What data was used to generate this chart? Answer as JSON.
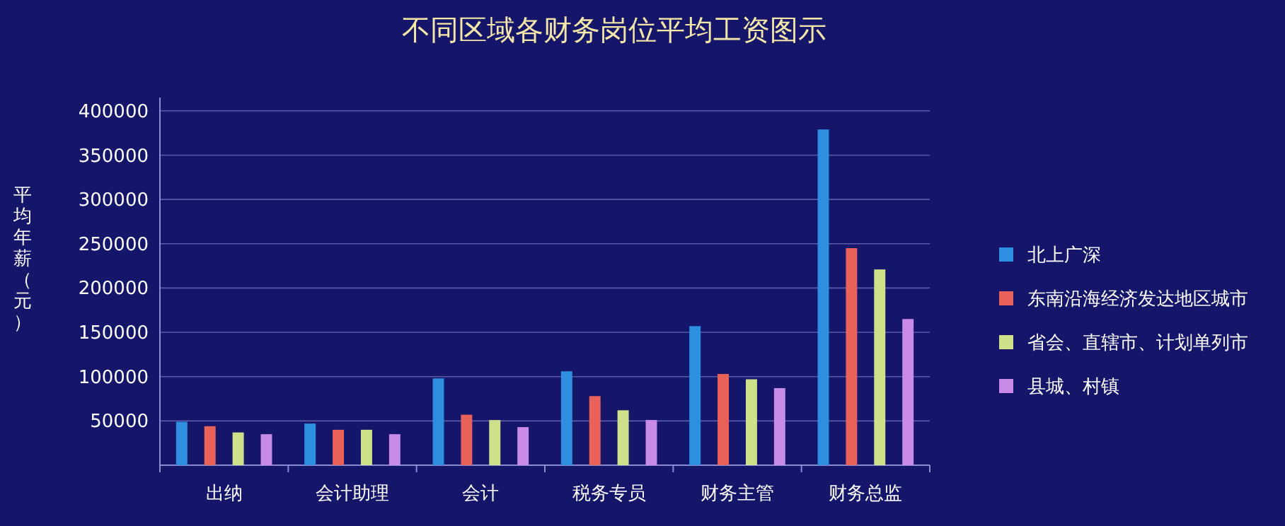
{
  "chart_data": {
    "type": "bar",
    "title": "不同区域各财务岗位平均工资图示",
    "ylabel": "平均年薪（元）",
    "categories": [
      "出纳",
      "会计助理",
      "会计",
      "税务专员",
      "财务主管",
      "财务总监"
    ],
    "series": [
      {
        "name": "北上广深",
        "color": "#2e8fe0",
        "values": [
          49000,
          47000,
          98000,
          106000,
          157000,
          379000
        ]
      },
      {
        "name": "东南沿海经济发达地区城市",
        "color": "#e8625a",
        "values": [
          44000,
          40000,
          57000,
          78000,
          103000,
          245000
        ]
      },
      {
        "name": "省会、直辖市、计划单列市",
        "color": "#cfe08a",
        "values": [
          37000,
          40000,
          51000,
          62000,
          97000,
          221000
        ]
      },
      {
        "name": "县城、村镇",
        "color": "#c98be8",
        "values": [
          35000,
          35000,
          43000,
          51000,
          87000,
          165000
        ]
      }
    ],
    "ylim": [
      0,
      415000
    ],
    "yticks": [
      50000,
      100000,
      150000,
      200000,
      250000,
      300000,
      350000,
      400000
    ],
    "grid": "y",
    "legend": "right"
  }
}
